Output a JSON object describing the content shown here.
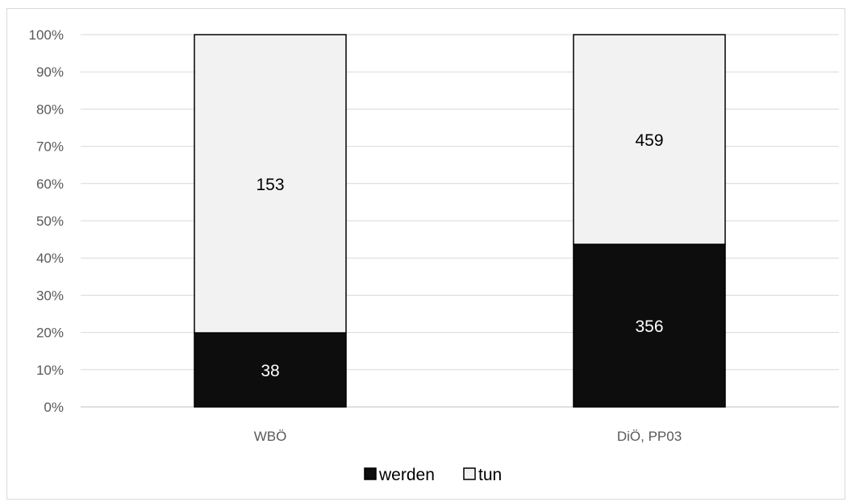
{
  "chart_data": {
    "type": "bar",
    "stacked": "percent",
    "categories": [
      "WBÖ",
      "DiÖ, PP03"
    ],
    "series": [
      {
        "name": "werden",
        "values": [
          38,
          356
        ],
        "color": "#0d0d0d",
        "label_color": "#ffffff"
      },
      {
        "name": "tun",
        "values": [
          153,
          459
        ],
        "color": "#f2f2f2",
        "label_color": "#000000"
      }
    ],
    "yticks": [
      "0%",
      "10%",
      "20%",
      "30%",
      "40%",
      "50%",
      "60%",
      "70%",
      "80%",
      "90%",
      "100%"
    ],
    "ylim": [
      0,
      100
    ],
    "grid": true,
    "legend": "bottom",
    "title": "",
    "xlabel": "",
    "ylabel": ""
  }
}
